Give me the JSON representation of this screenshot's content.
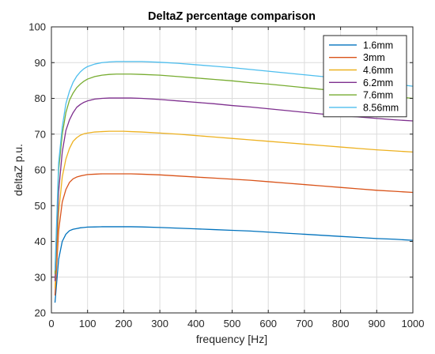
{
  "chart_data": {
    "type": "line",
    "title": "DeltaZ percentage comparison",
    "xlabel": "frequency [Hz]",
    "ylabel": "deltaZ p.u.",
    "xlim": [
      0,
      1000
    ],
    "ylim": [
      20,
      100
    ],
    "xticks": [
      0,
      100,
      200,
      300,
      400,
      500,
      600,
      700,
      800,
      900,
      1000
    ],
    "yticks": [
      20,
      30,
      40,
      50,
      60,
      70,
      80,
      90,
      100
    ],
    "grid": true,
    "legend_position": "top-right",
    "x": [
      10,
      20,
      30,
      40,
      50,
      60,
      70,
      80,
      90,
      100,
      120,
      140,
      160,
      180,
      200,
      220,
      250,
      300,
      350,
      400,
      450,
      500,
      550,
      600,
      650,
      700,
      750,
      800,
      850,
      900,
      950,
      1000
    ],
    "series": [
      {
        "name": "1.6mm",
        "color": "#0072BD",
        "values": [
          23,
          35,
          40,
          42,
          43,
          43.4,
          43.6,
          43.8,
          43.9,
          44,
          44.05,
          44.1,
          44.1,
          44.1,
          44.1,
          44.1,
          44.05,
          43.9,
          43.7,
          43.5,
          43.3,
          43.1,
          42.9,
          42.6,
          42.3,
          42,
          41.7,
          41.4,
          41.1,
          40.8,
          40.6,
          40.3
        ]
      },
      {
        "name": "3mm",
        "color": "#D95319",
        "values": [
          25,
          43,
          51,
          54.5,
          56.5,
          57.5,
          58,
          58.3,
          58.5,
          58.7,
          58.8,
          58.9,
          58.9,
          58.9,
          58.9,
          58.9,
          58.8,
          58.6,
          58.3,
          58,
          57.7,
          57.4,
          57.1,
          56.7,
          56.3,
          55.9,
          55.5,
          55.1,
          54.7,
          54.3,
          54,
          53.7
        ]
      },
      {
        "name": "4.6mm",
        "color": "#EDB120",
        "values": [
          27,
          48,
          58,
          63,
          66,
          68,
          69,
          69.7,
          70.1,
          70.3,
          70.6,
          70.7,
          70.8,
          70.8,
          70.8,
          70.7,
          70.6,
          70.3,
          70,
          69.6,
          69.2,
          68.8,
          68.4,
          68,
          67.6,
          67.2,
          66.8,
          66.4,
          66,
          65.6,
          65.3,
          65
        ]
      },
      {
        "name": "6.2mm",
        "color": "#7E2F8E",
        "values": [
          29,
          54,
          65,
          71,
          74,
          76,
          77.5,
          78.3,
          78.9,
          79.3,
          79.8,
          80,
          80.1,
          80.1,
          80.1,
          80.1,
          80,
          79.7,
          79.3,
          78.9,
          78.5,
          78,
          77.6,
          77.1,
          76.6,
          76.1,
          75.6,
          75.2,
          74.8,
          74.4,
          74,
          73.7
        ]
      },
      {
        "name": "7.6mm",
        "color": "#77AC30",
        "values": [
          31,
          60,
          70,
          76,
          79.5,
          81.5,
          83,
          84,
          84.8,
          85.4,
          86.1,
          86.5,
          86.7,
          86.8,
          86.8,
          86.8,
          86.7,
          86.5,
          86.1,
          85.7,
          85.3,
          84.9,
          84.4,
          84,
          83.5,
          83,
          82.5,
          82,
          81.5,
          81,
          80.5,
          80
        ]
      },
      {
        "name": "8.56mm",
        "color": "#4DBEEE",
        "values": [
          32,
          62,
          72,
          78.5,
          82,
          84.5,
          86.2,
          87.4,
          88.3,
          88.9,
          89.6,
          90,
          90.2,
          90.3,
          90.3,
          90.3,
          90.3,
          90.1,
          89.8,
          89.4,
          89,
          88.6,
          88.1,
          87.6,
          87.1,
          86.6,
          86.1,
          85.6,
          85,
          84.5,
          84,
          83.4
        ]
      }
    ]
  }
}
